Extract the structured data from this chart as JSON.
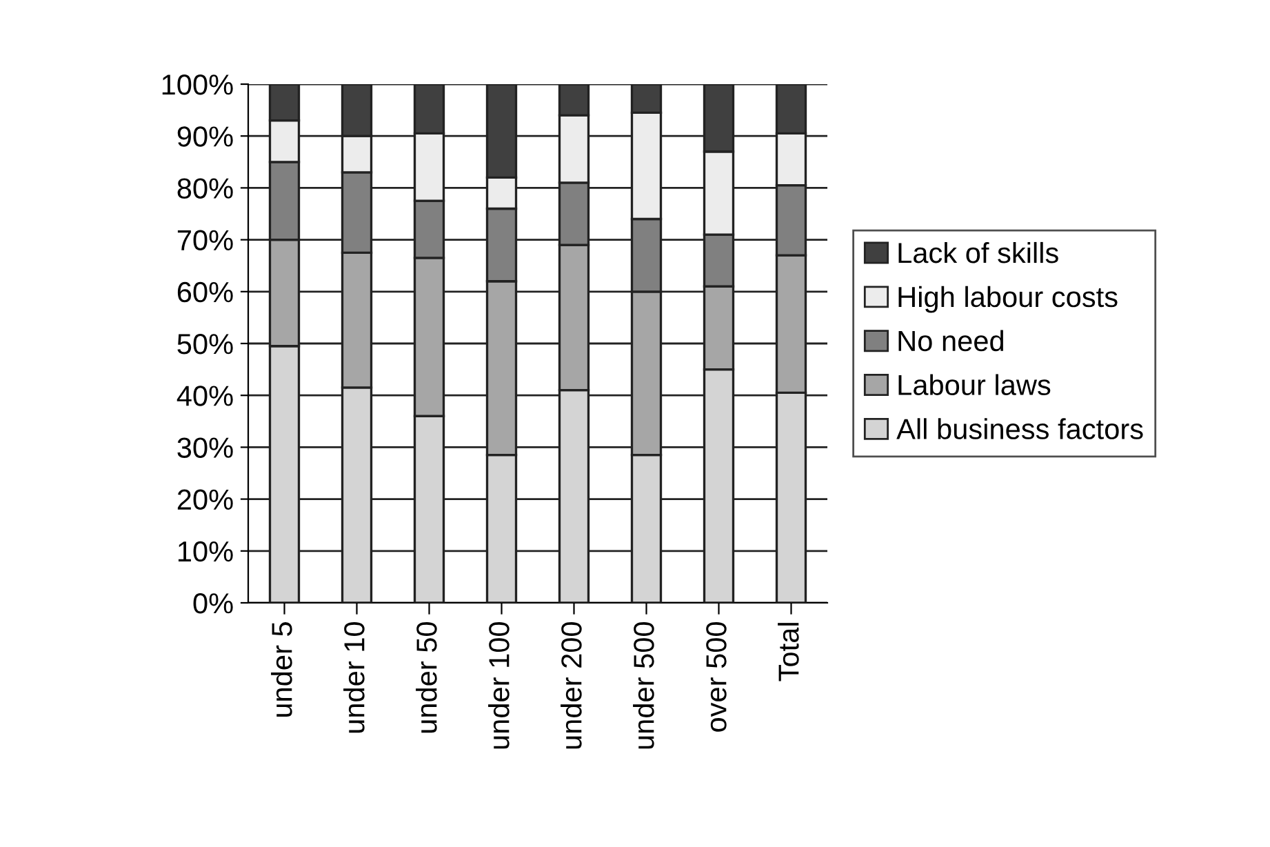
{
  "chart_data": {
    "type": "bar",
    "stacked": true,
    "categories": [
      "under 5",
      "under 10",
      "under 50",
      "under 100",
      "under 200",
      "under 500",
      "over 500",
      "Total"
    ],
    "series": [
      {
        "name": "All business factors",
        "color": "#d4d4d4",
        "values": [
          49.5,
          41.5,
          36,
          28.5,
          41,
          28.5,
          45,
          40.5
        ]
      },
      {
        "name": "Labour laws",
        "color": "#a6a6a6",
        "values": [
          20.5,
          26,
          30.5,
          33.5,
          28,
          31.5,
          16,
          26.5
        ]
      },
      {
        "name": "No need",
        "color": "#808080",
        "values": [
          15,
          15.5,
          11,
          14,
          12,
          14,
          10,
          13.5
        ]
      },
      {
        "name": "High labour costs",
        "color": "#ececec",
        "values": [
          8,
          7,
          13,
          6,
          13,
          20.5,
          16,
          10
        ]
      },
      {
        "name": "Lack of skills",
        "color": "#404040",
        "values": [
          7,
          10,
          9.5,
          18,
          6,
          5.5,
          13,
          9.5
        ]
      }
    ],
    "ylim": [
      0,
      100
    ],
    "yticks": [
      {
        "value": 0,
        "label": "0%"
      },
      {
        "value": 10,
        "label": "10%"
      },
      {
        "value": 20,
        "label": "20%"
      },
      {
        "value": 30,
        "label": "30%"
      },
      {
        "value": 40,
        "label": "40%"
      },
      {
        "value": 50,
        "label": "50%"
      },
      {
        "value": 60,
        "label": "60%"
      },
      {
        "value": 70,
        "label": "70%"
      },
      {
        "value": 80,
        "label": "80%"
      },
      {
        "value": 90,
        "label": "90%"
      },
      {
        "value": 100,
        "label": "100%"
      }
    ],
    "grid": "y",
    "legend": "right"
  }
}
